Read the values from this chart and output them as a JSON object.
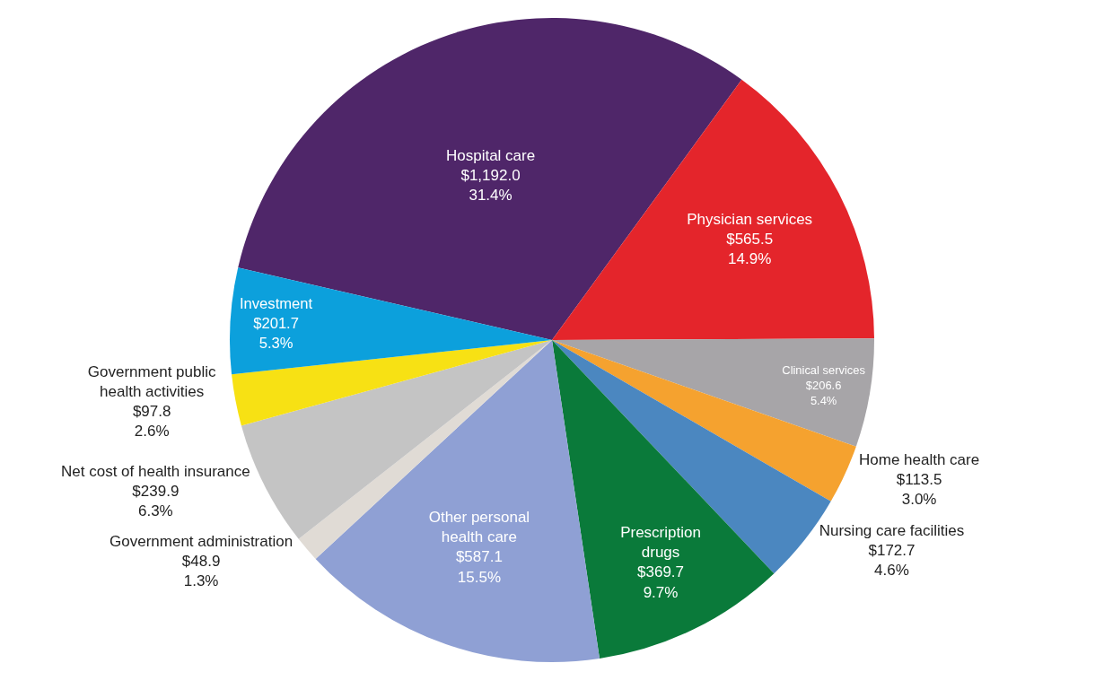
{
  "chart_data": {
    "type": "pie",
    "categories": [
      "Hospital care",
      "Physician services",
      "Clinical services",
      "Home health care",
      "Nursing care facilities",
      "Prescription\ndrugs",
      "Other personal\nhealth care",
      "Government administration",
      "Net cost of health insurance",
      "Government public\nhealth activities",
      "Investment"
    ],
    "values": [
      1192.0,
      565.5,
      206.6,
      113.5,
      172.7,
      369.7,
      587.1,
      48.9,
      239.9,
      97.8,
      201.7
    ],
    "value_labels": [
      "$1,192.0\n31.4%",
      "$565.5\n14.9%",
      "$206.6\n5.4%",
      "$113.5\n3.0%",
      "$172.7\n4.6%",
      "$369.7\n9.7%",
      "$587.1\n15.5%",
      "$48.9\n1.3%",
      "$239.9\n6.3%",
      "$97.8\n2.6%",
      "$201.7\n5.3%"
    ],
    "colors": [
      "#4f2669",
      "#e4252b",
      "#a7a5a8",
      "#f5a22f",
      "#4b87c0",
      "#0a7a3a",
      "#8fa0d4",
      "#e0dbd5",
      "#c4c4c4",
      "#f7e114",
      "#0ca0dc"
    ]
  }
}
